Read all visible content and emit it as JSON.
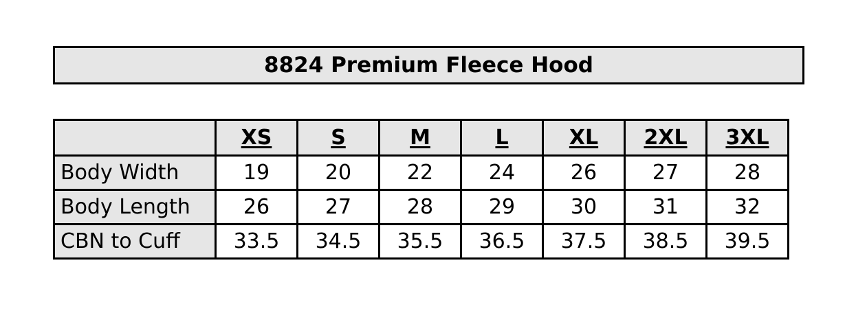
{
  "title": "8824 Premium Fleece Hood",
  "table": {
    "sizes": [
      "XS",
      "S",
      "M",
      "L",
      "XL",
      "2XL",
      "3XL"
    ],
    "rows": [
      {
        "label": "Body Width",
        "values": [
          "19",
          "20",
          "22",
          "24",
          "26",
          "27",
          "28"
        ]
      },
      {
        "label": "Body Length",
        "values": [
          "26",
          "27",
          "28",
          "29",
          "30",
          "31",
          "32"
        ]
      },
      {
        "label": "CBN to Cuff",
        "values": [
          "33.5",
          "34.5",
          "35.5",
          "36.5",
          "37.5",
          "38.5",
          "39.5"
        ]
      }
    ]
  },
  "colors": {
    "header_fill": "#e6e6e6",
    "border": "#000000",
    "cell_fill": "#ffffff"
  }
}
